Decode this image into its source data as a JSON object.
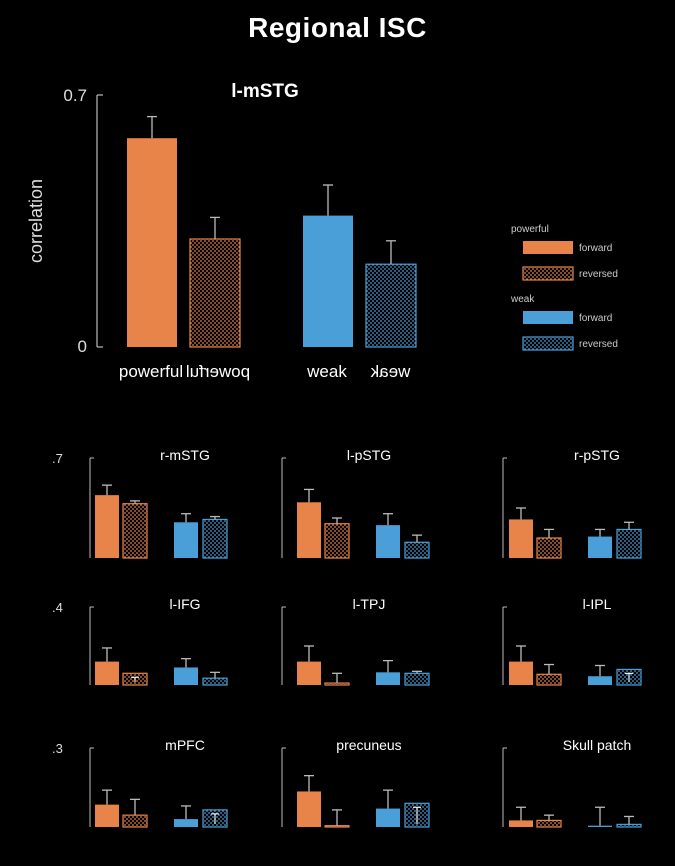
{
  "title": "Regional ISC",
  "colors": {
    "powerful": "#e8844a",
    "weak": "#4a9fd8",
    "axis": "#bbbbbb",
    "text": "#ffffff"
  },
  "chart_data": [
    {
      "type": "bar",
      "title": "l-mSTG",
      "ylabel": "correlation",
      "ylim": [
        0,
        0.7
      ],
      "yticks": [
        "0",
        "0.7"
      ],
      "categories": [
        "powerful",
        "powerful",
        "weak",
        "weak"
      ],
      "legend": {
        "groups": [
          {
            "name": "powerful",
            "items": [
              "forward",
              "reversed"
            ]
          },
          {
            "name": "weak",
            "items": [
              "forward",
              "reversed"
            ]
          }
        ],
        "position": "right"
      },
      "bars": [
        {
          "group": "powerful",
          "condition": "forward",
          "value": 0.58,
          "err": 0.06
        },
        {
          "group": "powerful",
          "condition": "reversed",
          "value": 0.3,
          "err": 0.06
        },
        {
          "group": "weak",
          "condition": "forward",
          "value": 0.365,
          "err": 0.085
        },
        {
          "group": "weak",
          "condition": "reversed",
          "value": 0.23,
          "err": 0.065
        }
      ]
    },
    {
      "type": "bar",
      "title": "r-mSTG",
      "ymax_label": ".7",
      "ylim": [
        0,
        0.7
      ],
      "values": [
        0.44,
        0.38,
        0.25,
        0.27
      ],
      "errors": [
        0.07,
        0.02,
        0.06,
        0.02
      ]
    },
    {
      "type": "bar",
      "title": "l-pSTG",
      "ylim": [
        0,
        0.7
      ],
      "values": [
        0.39,
        0.24,
        0.23,
        0.11
      ],
      "errors": [
        0.09,
        0.04,
        0.08,
        0.05
      ]
    },
    {
      "type": "bar",
      "title": "r-pSTG",
      "ylim": [
        0,
        0.7
      ],
      "values": [
        0.27,
        0.14,
        0.15,
        0.2
      ],
      "errors": [
        0.08,
        0.06,
        0.05,
        0.05
      ]
    },
    {
      "type": "bar",
      "title": "l-IFG",
      "ymax_label": ".4",
      "ylim": [
        0,
        0.4
      ],
      "values": [
        0.12,
        0.06,
        0.09,
        0.035
      ],
      "errors": [
        0.07,
        0.0,
        0.045,
        0.03
      ]
    },
    {
      "type": "bar",
      "title": "l-TPJ",
      "ylim": [
        0,
        0.4
      ],
      "values": [
        0.12,
        0.01,
        0.065,
        0.06
      ],
      "errors": [
        0.08,
        0.05,
        0.06,
        0.01
      ]
    },
    {
      "type": "bar",
      "title": "l-IPL",
      "ylim": [
        0,
        0.4
      ],
      "values": [
        0.12,
        0.055,
        0.045,
        0.08
      ],
      "errors": [
        0.08,
        0.05,
        0.055,
        0.0
      ]
    },
    {
      "type": "bar",
      "title": "mPFC",
      "ymax_label": ".3",
      "ylim": [
        0,
        0.3
      ],
      "values": [
        0.085,
        0.045,
        0.03,
        0.065
      ],
      "errors": [
        0.055,
        0.06,
        0.05,
        0.0
      ]
    },
    {
      "type": "bar",
      "title": "precuneus",
      "ylim": [
        0,
        0.3
      ],
      "values": [
        0.135,
        0.005,
        0.07,
        0.09
      ],
      "errors": [
        0.06,
        0.06,
        0.07,
        0.0
      ]
    },
    {
      "type": "bar",
      "title": "Skull patch",
      "ylim": [
        0,
        0.3
      ],
      "values": [
        0.025,
        0.025,
        0.005,
        0.01
      ],
      "errors": [
        0.05,
        0.02,
        0.07,
        0.03
      ]
    }
  ]
}
